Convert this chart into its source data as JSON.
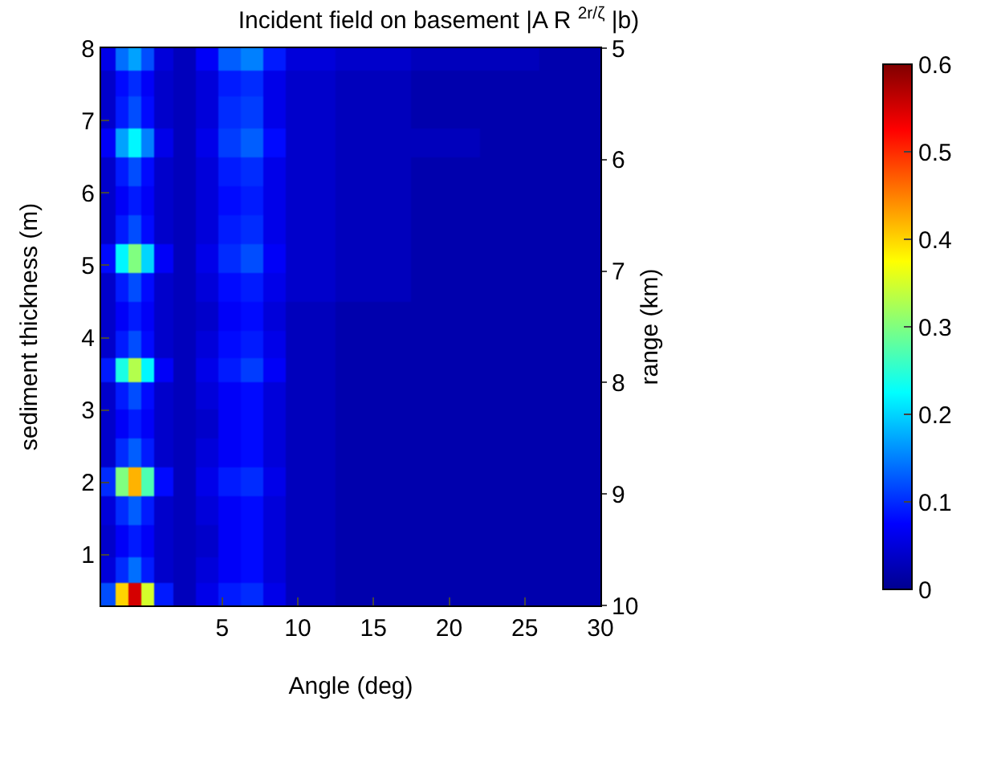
{
  "chart_data": {
    "type": "heatmap",
    "title": "Incident field on basement |A R $^{2r/ζ}$ |b)",
    "xlabel": "Angle (deg)",
    "ylabel": "sediment thickness (m)",
    "y2label": "range (km)",
    "x": [
      -2.5,
      -1.5,
      -0.8,
      0,
      1,
      2.5,
      4,
      5.5,
      7,
      8.5,
      10,
      15,
      20,
      24,
      28
    ],
    "y": [
      7.85,
      7.55,
      7.1,
      6.7,
      6.3,
      5.9,
      5.5,
      5.1,
      4.7,
      4.3,
      3.9,
      3.55,
      3.2,
      2.8,
      2.4,
      2.0,
      1.6,
      1.2,
      0.75,
      0.45
    ],
    "cells": [
      [
        0.06,
        0.14,
        0.17,
        0.12,
        0.05,
        0.03,
        0.07,
        0.13,
        0.15,
        0.09,
        0.05,
        0.04,
        0.03,
        0.03,
        0.02
      ],
      [
        0.04,
        0.08,
        0.1,
        0.07,
        0.04,
        0.03,
        0.05,
        0.09,
        0.1,
        0.06,
        0.04,
        0.03,
        0.02,
        0.02,
        0.02
      ],
      [
        0.04,
        0.09,
        0.12,
        0.08,
        0.04,
        0.03,
        0.05,
        0.1,
        0.11,
        0.06,
        0.04,
        0.03,
        0.02,
        0.02,
        0.02
      ],
      [
        0.07,
        0.17,
        0.22,
        0.15,
        0.06,
        0.03,
        0.06,
        0.11,
        0.13,
        0.08,
        0.04,
        0.03,
        0.03,
        0.02,
        0.02
      ],
      [
        0.04,
        0.09,
        0.12,
        0.08,
        0.04,
        0.03,
        0.05,
        0.09,
        0.1,
        0.06,
        0.04,
        0.03,
        0.02,
        0.02,
        0.02
      ],
      [
        0.04,
        0.07,
        0.09,
        0.07,
        0.04,
        0.03,
        0.05,
        0.08,
        0.09,
        0.06,
        0.04,
        0.03,
        0.02,
        0.02,
        0.02
      ],
      [
        0.04,
        0.09,
        0.12,
        0.08,
        0.04,
        0.03,
        0.05,
        0.09,
        0.1,
        0.06,
        0.04,
        0.03,
        0.02,
        0.02,
        0.02
      ],
      [
        0.08,
        0.22,
        0.3,
        0.2,
        0.07,
        0.03,
        0.06,
        0.1,
        0.12,
        0.07,
        0.04,
        0.03,
        0.02,
        0.02,
        0.02
      ],
      [
        0.04,
        0.09,
        0.12,
        0.08,
        0.04,
        0.03,
        0.05,
        0.08,
        0.09,
        0.06,
        0.04,
        0.03,
        0.02,
        0.02,
        0.02
      ],
      [
        0.04,
        0.07,
        0.09,
        0.07,
        0.04,
        0.03,
        0.04,
        0.07,
        0.08,
        0.05,
        0.03,
        0.02,
        0.02,
        0.02,
        0.02
      ],
      [
        0.04,
        0.09,
        0.12,
        0.08,
        0.04,
        0.03,
        0.05,
        0.08,
        0.09,
        0.06,
        0.03,
        0.02,
        0.02,
        0.02,
        0.02
      ],
      [
        0.09,
        0.24,
        0.33,
        0.22,
        0.07,
        0.03,
        0.06,
        0.09,
        0.11,
        0.07,
        0.03,
        0.02,
        0.02,
        0.02,
        0.02
      ],
      [
        0.04,
        0.09,
        0.12,
        0.08,
        0.04,
        0.03,
        0.05,
        0.07,
        0.08,
        0.05,
        0.03,
        0.02,
        0.02,
        0.02,
        0.02
      ],
      [
        0.04,
        0.07,
        0.09,
        0.07,
        0.04,
        0.03,
        0.04,
        0.07,
        0.08,
        0.05,
        0.03,
        0.02,
        0.02,
        0.02,
        0.02
      ],
      [
        0.04,
        0.1,
        0.13,
        0.09,
        0.04,
        0.03,
        0.05,
        0.07,
        0.08,
        0.05,
        0.03,
        0.02,
        0.02,
        0.02,
        0.02
      ],
      [
        0.1,
        0.3,
        0.42,
        0.27,
        0.08,
        0.03,
        0.06,
        0.09,
        0.1,
        0.06,
        0.03,
        0.02,
        0.02,
        0.02,
        0.02
      ],
      [
        0.05,
        0.1,
        0.13,
        0.09,
        0.04,
        0.03,
        0.05,
        0.07,
        0.08,
        0.05,
        0.03,
        0.02,
        0.02,
        0.02,
        0.02
      ],
      [
        0.04,
        0.07,
        0.09,
        0.07,
        0.04,
        0.03,
        0.04,
        0.07,
        0.08,
        0.05,
        0.03,
        0.02,
        0.02,
        0.02,
        0.02
      ],
      [
        0.05,
        0.1,
        0.14,
        0.09,
        0.04,
        0.03,
        0.05,
        0.07,
        0.08,
        0.05,
        0.03,
        0.02,
        0.02,
        0.02,
        0.02
      ],
      [
        0.12,
        0.4,
        0.55,
        0.35,
        0.09,
        0.03,
        0.06,
        0.09,
        0.1,
        0.06,
        0.03,
        0.02,
        0.02,
        0.02,
        0.02
      ]
    ],
    "xlim": [
      -3,
      30
    ],
    "xticks": [
      5,
      10,
      15,
      20,
      25,
      30
    ],
    "ylim": [
      0.3,
      8
    ],
    "yticks": [
      1,
      2,
      3,
      4,
      5,
      6,
      7,
      8
    ],
    "y2lim": [
      10,
      5
    ],
    "y2ticks": [
      5,
      6,
      7,
      8,
      9,
      10
    ],
    "clim": [
      0,
      0.6
    ],
    "cticks": [
      0,
      0.1,
      0.2,
      0.3,
      0.4,
      0.5,
      0.6
    ]
  }
}
